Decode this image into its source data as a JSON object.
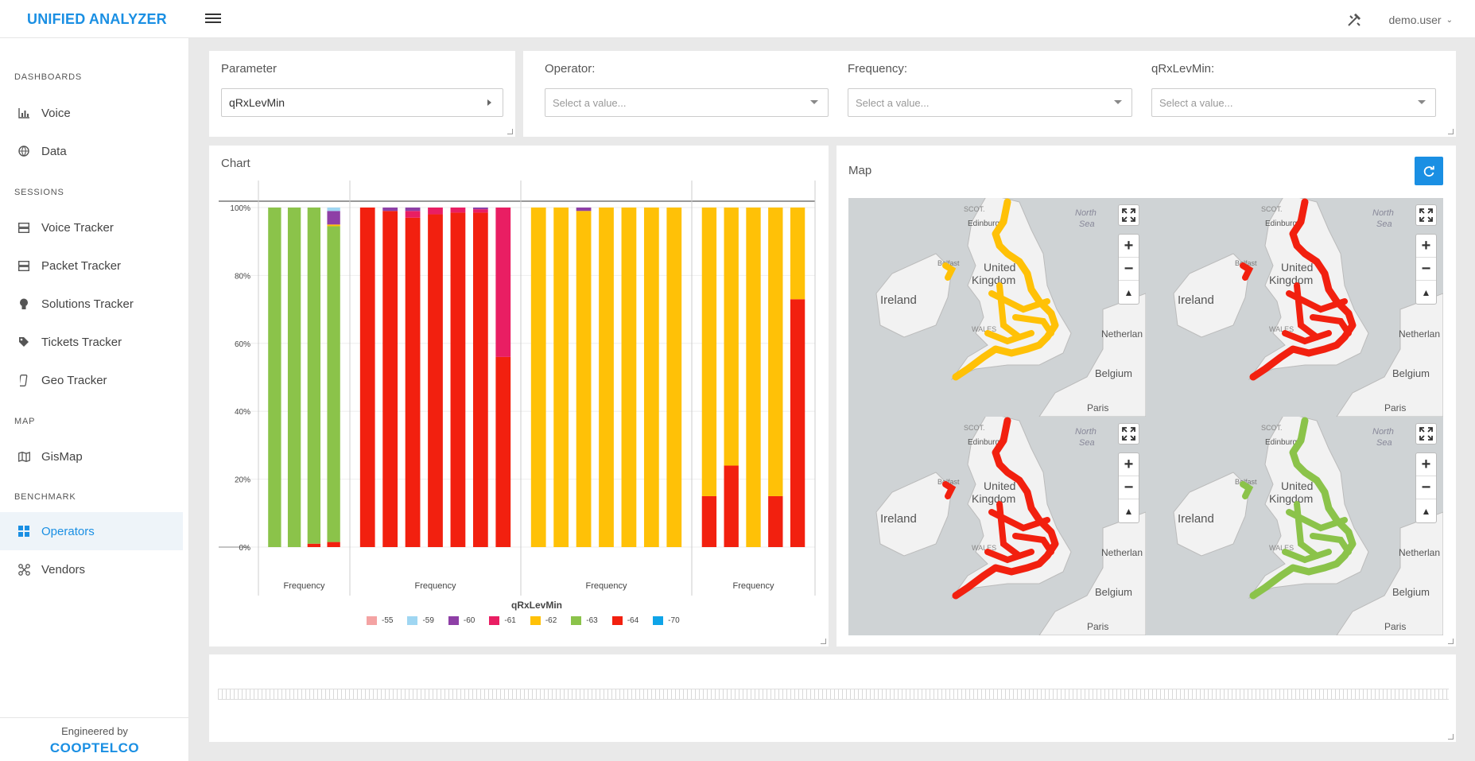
{
  "app": {
    "title": "UNIFIED ANALYZER",
    "user": "demo.user"
  },
  "sidebar": {
    "sections": [
      "DASHBOARDS",
      "SESSIONS",
      "MAP",
      "BENCHMARK"
    ],
    "items": [
      {
        "label": "Voice",
        "icon": "bar-chart-icon"
      },
      {
        "label": "Data",
        "icon": "globe-icon"
      },
      {
        "label": "Voice Tracker",
        "icon": "server-icon"
      },
      {
        "label": "Packet Tracker",
        "icon": "server-icon"
      },
      {
        "label": "Solutions Tracker",
        "icon": "bulb-icon"
      },
      {
        "label": "Tickets Tracker",
        "icon": "tag-icon"
      },
      {
        "label": "Geo Tracker",
        "icon": "phone-icon"
      },
      {
        "label": "GisMap",
        "icon": "map-icon"
      },
      {
        "label": "Operators",
        "icon": "grid-icon"
      },
      {
        "label": "Vendors",
        "icon": "network-icon"
      }
    ],
    "active": "Operators",
    "footer": {
      "engineered": "Engineered by",
      "company": "COOPTELCO"
    }
  },
  "parameter": {
    "label": "Parameter",
    "value": "qRxLevMin"
  },
  "filters": {
    "operator": {
      "label": "Operator:",
      "placeholder": "Select a value..."
    },
    "frequency": {
      "label": "Frequency:",
      "placeholder": "Select a value..."
    },
    "qrx": {
      "label": "qRxLevMin:",
      "placeholder": "Select a value..."
    }
  },
  "chart_panel": {
    "title": "Chart"
  },
  "map_panel": {
    "title": "Map"
  },
  "colors": {
    "accent": "#1a8fe3"
  },
  "chart_data": {
    "type": "bar",
    "stacked": true,
    "percent": true,
    "xlabel": "qRxLevMin",
    "ylabel": "",
    "ylim": [
      0,
      100
    ],
    "yticks": [
      "0%",
      "20%",
      "40%",
      "60%",
      "80%",
      "100%"
    ],
    "groups": [
      {
        "label": "Frequency",
        "bars": 4
      },
      {
        "label": "Frequency",
        "bars": 7
      },
      {
        "label": "Frequency",
        "bars": 7
      },
      {
        "label": "Frequency",
        "bars": 5
      }
    ],
    "series_legend": [
      {
        "name": "-55",
        "color": "#f4a3a3"
      },
      {
        "name": "-59",
        "color": "#9fd6f2"
      },
      {
        "name": "-60",
        "color": "#8e3fa6"
      },
      {
        "name": "-61",
        "color": "#e91e63"
      },
      {
        "name": "-62",
        "color": "#ffc107"
      },
      {
        "name": "-63",
        "color": "#8bc34a"
      },
      {
        "name": "-64",
        "color": "#f2200f"
      },
      {
        "name": "-70",
        "color": "#0fa4e8"
      }
    ],
    "bars": [
      [
        {
          "s": "-63",
          "v": 100
        }
      ],
      [
        {
          "s": "-63",
          "v": 100
        }
      ],
      [
        {
          "s": "-64",
          "v": 1
        },
        {
          "s": "-63",
          "v": 99
        }
      ],
      [
        {
          "s": "-64",
          "v": 1.5
        },
        {
          "s": "-63",
          "v": 93
        },
        {
          "s": "-62",
          "v": 0.5
        },
        {
          "s": "-60",
          "v": 4
        },
        {
          "s": "-59",
          "v": 1
        }
      ],
      [
        {
          "s": "-64",
          "v": 100
        }
      ],
      [
        {
          "s": "-64",
          "v": 99
        },
        {
          "s": "-60",
          "v": 1
        }
      ],
      [
        {
          "s": "-64",
          "v": 97
        },
        {
          "s": "-61",
          "v": 2
        },
        {
          "s": "-60",
          "v": 1
        }
      ],
      [
        {
          "s": "-64",
          "v": 98
        },
        {
          "s": "-61",
          "v": 2
        }
      ],
      [
        {
          "s": "-64",
          "v": 98.5
        },
        {
          "s": "-61",
          "v": 1.5
        }
      ],
      [
        {
          "s": "-64",
          "v": 98.5
        },
        {
          "s": "-61",
          "v": 1
        },
        {
          "s": "-60",
          "v": 0.5
        }
      ],
      [
        {
          "s": "-64",
          "v": 56
        },
        {
          "s": "-61",
          "v": 44
        }
      ],
      [
        {
          "s": "-62",
          "v": 100
        }
      ],
      [
        {
          "s": "-62",
          "v": 100
        }
      ],
      [
        {
          "s": "-62",
          "v": 99
        },
        {
          "s": "-60",
          "v": 1
        }
      ],
      [
        {
          "s": "-62",
          "v": 100
        }
      ],
      [
        {
          "s": "-62",
          "v": 100
        }
      ],
      [
        {
          "s": "-62",
          "v": 100
        }
      ],
      [
        {
          "s": "-62",
          "v": 100
        }
      ],
      [
        {
          "s": "-64",
          "v": 15
        },
        {
          "s": "-62",
          "v": 85
        }
      ],
      [
        {
          "s": "-64",
          "v": 24
        },
        {
          "s": "-62",
          "v": 76
        }
      ],
      [
        {
          "s": "-62",
          "v": 100
        }
      ],
      [
        {
          "s": "-64",
          "v": 15
        },
        {
          "s": "-62",
          "v": 85
        }
      ],
      [
        {
          "s": "-64",
          "v": 73
        },
        {
          "s": "-62",
          "v": 27
        }
      ]
    ]
  },
  "maps": [
    {
      "labels": {
        "scot": "SCOT.",
        "edinburgh": "Edinburgh",
        "uk": "United Kingdom",
        "ireland": "Ireland",
        "belfast": "Belfast",
        "wales": "WALES",
        "netherlands": "Netherlan",
        "belgium": "Belgium",
        "paris": "Paris",
        "sea": "North Sea"
      },
      "route_color": "#ffc107"
    },
    {
      "labels": {
        "scot": "SCOT.",
        "edinburgh": "Edinburgh",
        "uk": "United Kingdom",
        "ireland": "Ireland",
        "belfast": "Belfast",
        "wales": "WALES",
        "netherlands": "Netherlan",
        "belgium": "Belgium",
        "paris": "Paris",
        "sea": "North Sea"
      },
      "route_color": "#f2200f"
    },
    {
      "labels": {
        "scot": "SCOT.",
        "edinburgh": "Edinburgh",
        "uk": "United Kingdom",
        "ireland": "Ireland",
        "belfast": "Belfast",
        "wales": "WALES",
        "netherlands": "Netherlan",
        "belgium": "Belgium",
        "paris": "Paris",
        "sea": "North Sea"
      },
      "route_color": "#f2200f"
    },
    {
      "labels": {
        "scot": "SCOT.",
        "edinburgh": "Edinburgh",
        "uk": "United Kingdom",
        "ireland": "Ireland",
        "belfast": "Belfast",
        "wales": "WALES",
        "netherlands": "Netherlan",
        "belgium": "Belgium",
        "paris": "Paris",
        "sea": "North Sea"
      },
      "route_color": "#8bc34a"
    }
  ]
}
